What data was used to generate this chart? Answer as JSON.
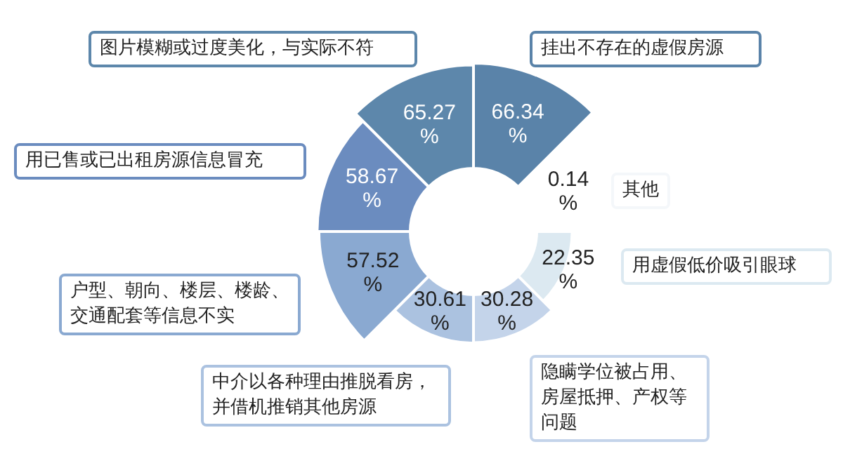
{
  "chart_data": {
    "type": "other",
    "categories": [
      "挂出不存在的虚假房源",
      "其他",
      "用虚假低价吸引眼球",
      "隐瞒学位被占用、房屋抵押、产权等问题",
      "中介以各种理由推脱看房，并借机推销其他房源",
      "户型、朝向、楼层、楼龄、交通配套等信息不实",
      "用已售或已出租房源信息冒充",
      "图片模糊或过度美化，与实际不符"
    ],
    "values": [
      66.34,
      0.14,
      22.35,
      30.28,
      30.61,
      57.52,
      58.67,
      65.27
    ],
    "value_labels": [
      "66.34 %",
      "0.14 %",
      "22.35 %",
      "30.28 %",
      "30.61 %",
      "57.52 %",
      "58.67 %",
      "65.27 %"
    ],
    "colors": [
      "#5a83a9",
      "#f4f7fa",
      "#dce9f1",
      "#c4d4ea",
      "#abc2e0",
      "#8aa9d1",
      "#6b8cbf",
      "#5d87ab"
    ]
  }
}
